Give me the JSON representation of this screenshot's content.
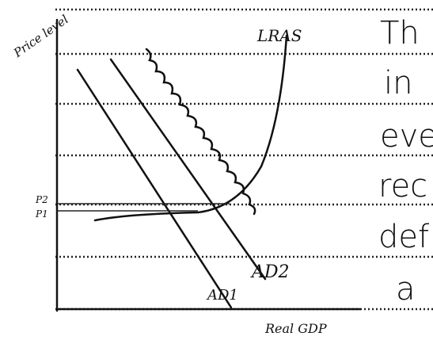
{
  "labels": {
    "y_axis": "Price level",
    "x_axis": "Real GDP",
    "lras": "LRAS",
    "p2": "P2",
    "p1": "P1",
    "ad_right": "AD2",
    "ad_left": "AD1"
  },
  "notes": [
    "Th",
    "in",
    "eve",
    "rec",
    "def",
    "a"
  ]
}
